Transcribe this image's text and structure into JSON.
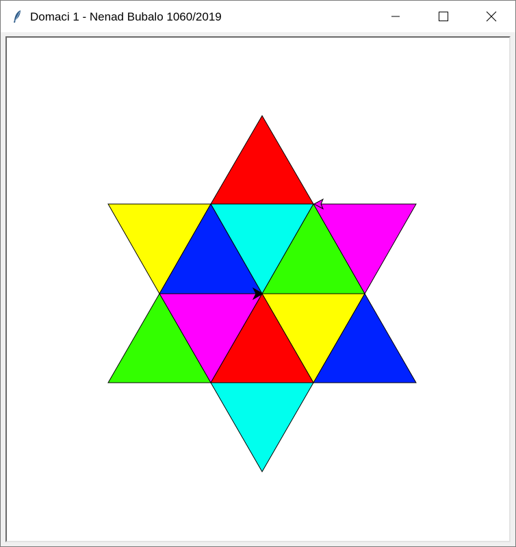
{
  "window": {
    "title": "Domaci 1 - Nenad Bubalo 1060/2019",
    "icon": "feather-icon",
    "controls": [
      "minimize-icon",
      "maximize-icon",
      "close-icon"
    ]
  },
  "canvas": {
    "background": "#ffffff",
    "outline_color": "#000000",
    "colors": {
      "red": "#ff0000",
      "cyan": "#00ffee",
      "yellow": "#ffff00",
      "blue": "#0022ff",
      "green": "#33ff00",
      "magenta": "#ff00ff"
    },
    "turtles": [
      {
        "color": "#000000"
      },
      {
        "color": "#ff00ff"
      }
    ]
  }
}
